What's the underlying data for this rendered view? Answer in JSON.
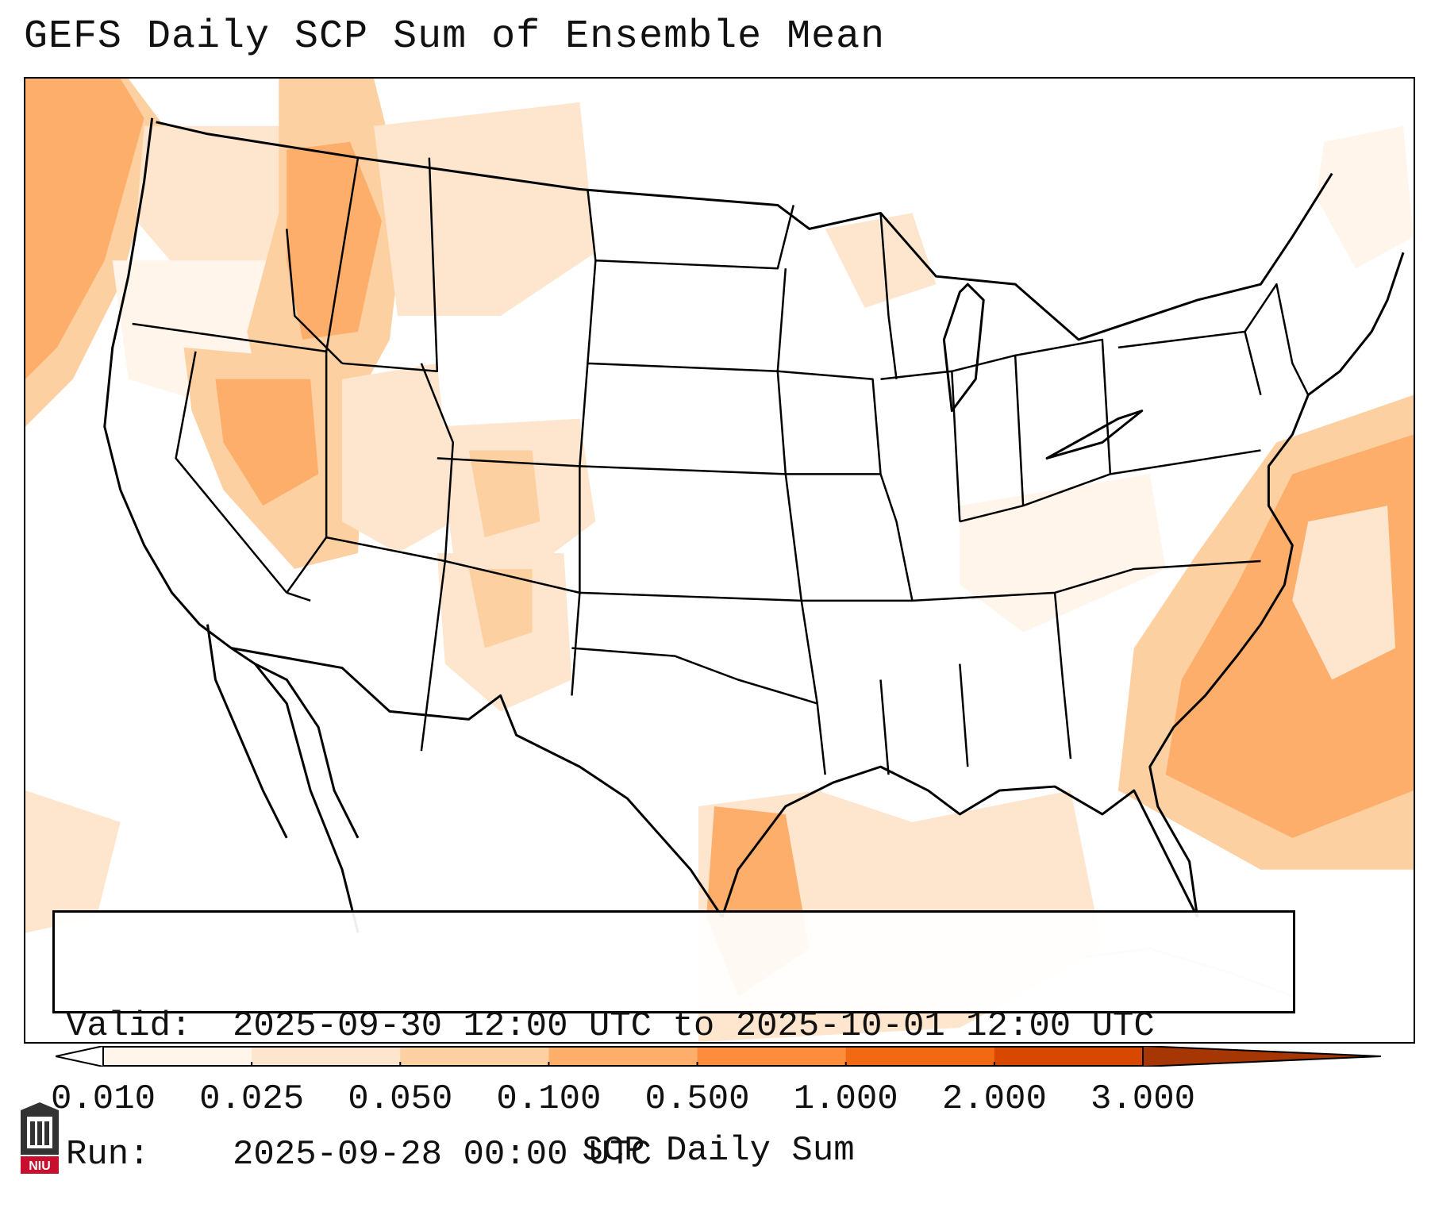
{
  "title": "GEFS Daily SCP Sum of Ensemble Mean",
  "valid_box": {
    "valid_label": "Valid:",
    "valid_value": "2025-09-30 12:00 UTC to 2025-10-01 12:00 UTC",
    "run_label": "Run:",
    "run_value": "2025-09-28 00:00 UTC"
  },
  "colorbar": {
    "label": "SCP Daily Sum",
    "ticks": [
      "0.010",
      "0.025",
      "0.050",
      "0.100",
      "0.500",
      "1.000",
      "2.000",
      "3.000"
    ],
    "colors": [
      "#fff5eb",
      "#fee6ce",
      "#fdd0a2",
      "#fdae6b",
      "#fd8d3c",
      "#f16913",
      "#d94801",
      "#a63603"
    ],
    "under_color": "#ffffff",
    "over_color": "#7f2704"
  },
  "logo": {
    "text": "NIU",
    "icon": "university-seal-icon",
    "color": "#c8102e"
  }
}
